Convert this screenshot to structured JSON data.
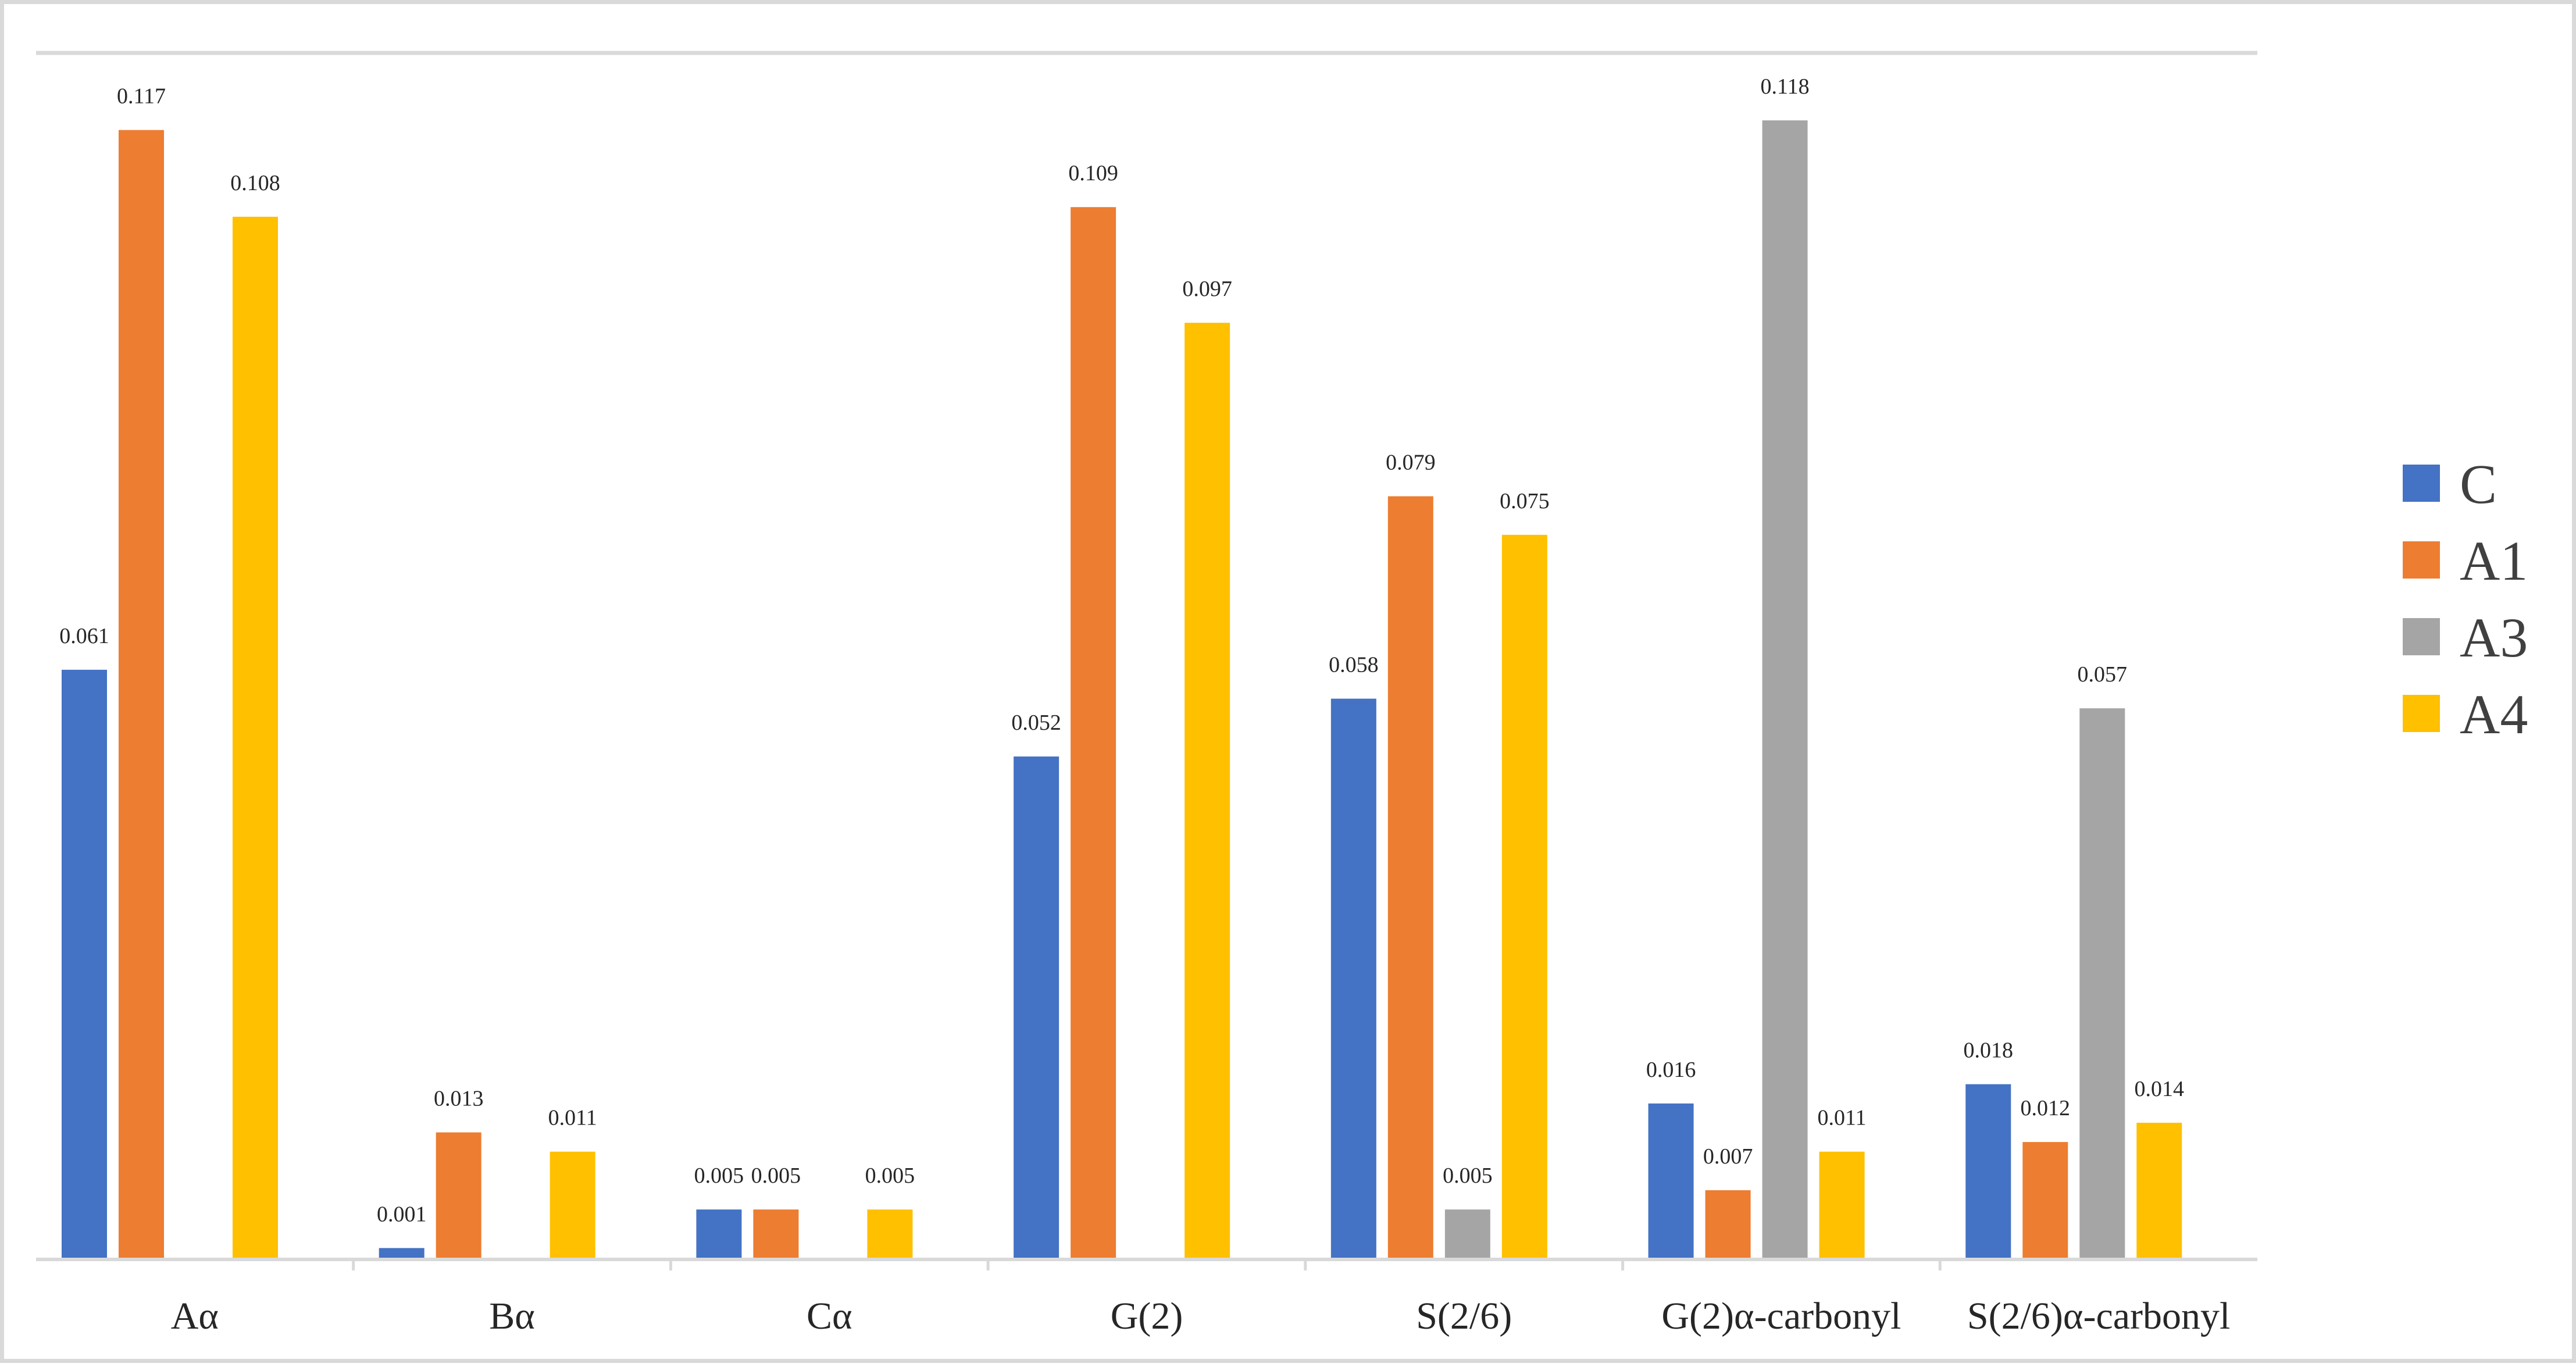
{
  "chart_data": {
    "type": "bar",
    "title": "",
    "xlabel": "",
    "ylabel": "",
    "ylim": [
      0,
      0.125
    ],
    "grid": false,
    "legend_position": "right",
    "categories": [
      "Aα",
      "Bα",
      "Cα",
      "G(2)",
      "S(2/6)",
      "G(2)α-carbonyl",
      "S(2/6)α-carbonyl"
    ],
    "series": [
      {
        "name": "C",
        "color": "#4472C4",
        "values": [
          0.061,
          0.001,
          0.005,
          0.052,
          0.058,
          0.016,
          0.018
        ]
      },
      {
        "name": "A1",
        "color": "#ED7D31",
        "values": [
          0.117,
          0.013,
          0.005,
          0.109,
          0.079,
          0.007,
          0.012
        ]
      },
      {
        "name": "A3",
        "color": "#A5A5A5",
        "values": [
          null,
          null,
          null,
          null,
          0.005,
          0.118,
          0.057
        ]
      },
      {
        "name": "A4",
        "color": "#FFC000",
        "values": [
          0.108,
          0.011,
          0.005,
          0.097,
          0.075,
          0.011,
          0.014
        ]
      }
    ],
    "data_labels": [
      [
        "0.061",
        "0.001",
        "0.005",
        "0.052",
        "0.058",
        "0.016",
        "0.018"
      ],
      [
        "0.117",
        "0.013",
        "0.005",
        "0.109",
        "0.079",
        "0.007",
        "0.012"
      ],
      [
        null,
        null,
        null,
        null,
        "0.005",
        "0.118",
        "0.057"
      ],
      [
        "0.108",
        "0.011",
        "0.005",
        "0.097",
        "0.075",
        "0.011",
        "0.014"
      ]
    ]
  }
}
